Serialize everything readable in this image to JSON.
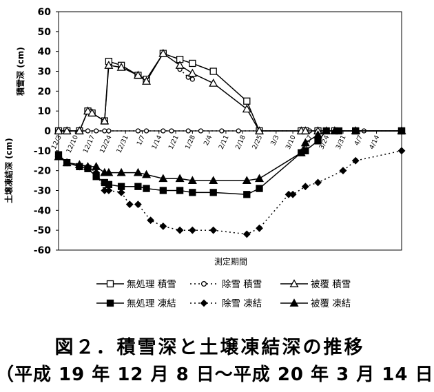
{
  "chart_data": {
    "type": "line",
    "x_ticks": [
      "12/3",
      "12/10",
      "12/17",
      "12/24",
      "12/31",
      "1/7",
      "1/14",
      "1/21",
      "1/28",
      "2/4",
      "2/11",
      "2/18",
      "2/25",
      "3/3",
      "3/10",
      "3/17",
      "3/24",
      "3/31",
      "4/7",
      "4/14"
    ],
    "y_ticks": [
      -60,
      -50,
      -40,
      -30,
      -20,
      -10,
      0,
      10,
      20,
      30,
      40,
      50,
      60
    ],
    "ylim": [
      -60,
      60
    ],
    "y_label_top": "積雪深 (cm)",
    "y_label_bottom": "土壌凍結深 (cm)",
    "xlabel": "測定期間",
    "grid": false,
    "legend_position": "bottom",
    "series": [
      {
        "name": "無処理 積雪",
        "color": "#000000",
        "marker": "square-open",
        "dash": "solid",
        "points": [
          [
            0,
            0
          ],
          [
            2,
            0
          ],
          [
            5,
            0
          ],
          [
            7,
            10
          ],
          [
            8,
            9
          ],
          [
            11,
            5
          ],
          [
            12,
            35
          ],
          [
            15,
            33
          ],
          [
            19,
            28
          ],
          [
            21,
            26
          ],
          [
            25,
            39
          ],
          [
            29,
            36
          ],
          [
            32,
            34
          ],
          [
            37,
            30
          ],
          [
            45,
            15
          ],
          [
            48,
            0
          ],
          [
            58,
            0
          ],
          [
            59,
            0
          ],
          [
            62,
            0
          ],
          [
            66,
            0
          ],
          [
            71,
            0
          ],
          [
            82,
            0
          ]
        ]
      },
      {
        "name": "除雪 積雪",
        "color": "#000000",
        "marker": "circle-open",
        "dash": "dotted",
        "points": [
          [
            0,
            0
          ],
          [
            2,
            0
          ],
          [
            5,
            0
          ],
          [
            7,
            0
          ],
          [
            9,
            0
          ],
          [
            11,
            0
          ],
          [
            12,
            0
          ],
          [
            19,
            0
          ],
          [
            21,
            0
          ],
          [
            25,
            0
          ],
          [
            27,
            0
          ],
          [
            31,
            0
          ],
          [
            34,
            0
          ],
          [
            39,
            0
          ],
          [
            43,
            0
          ],
          [
            48,
            0
          ],
          [
            59,
            0
          ],
          [
            60,
            0
          ],
          [
            64,
            0
          ],
          [
            67,
            0
          ],
          [
            73,
            0
          ],
          [
            82,
            0
          ]
        ],
        "extra_segment": [
          [
            29,
            31
          ],
          [
            31,
            27
          ],
          [
            32,
            26
          ]
        ]
      },
      {
        "name": "被覆 積雪",
        "color": "#000000",
        "marker": "triangle-open",
        "dash": "solid",
        "points": [
          [
            0,
            0
          ],
          [
            2,
            0
          ],
          [
            5,
            0
          ],
          [
            7,
            10
          ],
          [
            8,
            9
          ],
          [
            11,
            5
          ],
          [
            12,
            33
          ],
          [
            15,
            32
          ],
          [
            19,
            28
          ],
          [
            21,
            25
          ],
          [
            25,
            39
          ],
          [
            29,
            33
          ],
          [
            32,
            29
          ],
          [
            37,
            24
          ],
          [
            45,
            11
          ],
          [
            48,
            0
          ],
          [
            58,
            0
          ],
          [
            59,
            0
          ],
          [
            62,
            0
          ],
          [
            66,
            0
          ],
          [
            71,
            0
          ],
          [
            82,
            0
          ]
        ]
      },
      {
        "name": "無処理 凍結",
        "color": "#000000",
        "marker": "square-filled",
        "dash": "solid",
        "points": [
          [
            0,
            -12
          ],
          [
            2,
            -16
          ],
          [
            5,
            -18
          ],
          [
            7,
            -19
          ],
          [
            9,
            -23
          ],
          [
            11,
            -26
          ],
          [
            12,
            -27
          ],
          [
            15,
            -28
          ],
          [
            19,
            -28
          ],
          [
            21,
            -29
          ],
          [
            25,
            -30
          ],
          [
            29,
            -30
          ],
          [
            32,
            -31
          ],
          [
            37,
            -31
          ],
          [
            45,
            -32
          ],
          [
            48,
            -29
          ],
          [
            58,
            -11
          ],
          [
            59,
            -10
          ],
          [
            62,
            -5
          ],
          [
            64,
            0
          ],
          [
            67,
            0
          ],
          [
            71,
            0
          ],
          [
            82,
            0
          ]
        ]
      },
      {
        "name": "除雪 凍結",
        "color": "#000000",
        "marker": "diamond-filled",
        "dash": "dotted",
        "points": [
          [
            0,
            -13
          ],
          [
            2,
            -16
          ],
          [
            5,
            -18
          ],
          [
            7,
            -18
          ],
          [
            9,
            -21
          ],
          [
            11,
            -30
          ],
          [
            12,
            -30
          ],
          [
            15,
            -31
          ],
          [
            17,
            -37
          ],
          [
            19,
            -37
          ],
          [
            22,
            -45
          ],
          [
            25,
            -48
          ],
          [
            29,
            -50
          ],
          [
            32,
            -50
          ],
          [
            37,
            -50
          ],
          [
            45,
            -52
          ],
          [
            48,
            -49
          ],
          [
            55,
            -32
          ],
          [
            56,
            -32
          ],
          [
            59,
            -28
          ],
          [
            62,
            -26
          ],
          [
            68,
            -20
          ],
          [
            71,
            -15
          ],
          [
            82,
            -10
          ]
        ]
      },
      {
        "name": "被覆 凍結",
        "color": "#000000",
        "marker": "triangle-filled",
        "dash": "solid",
        "points": [
          [
            0,
            -13
          ],
          [
            2,
            -16
          ],
          [
            5,
            -17
          ],
          [
            7,
            -18
          ],
          [
            9,
            -18
          ],
          [
            11,
            -21
          ],
          [
            12,
            -21
          ],
          [
            15,
            -21
          ],
          [
            19,
            -21
          ],
          [
            21,
            -22
          ],
          [
            25,
            -24
          ],
          [
            29,
            -24
          ],
          [
            32,
            -25
          ],
          [
            37,
            -25
          ],
          [
            45,
            -25
          ],
          [
            48,
            -24
          ],
          [
            58,
            -11
          ],
          [
            59,
            -6
          ],
          [
            62,
            -2
          ],
          [
            64,
            0
          ],
          [
            66,
            0
          ],
          [
            71,
            0
          ],
          [
            82,
            0
          ]
        ]
      }
    ]
  },
  "caption": {
    "line1": "図２．積雪深と土壌凍結深の推移",
    "line2": "（平成 19 年 12 月 8 日～平成 20 年 3 月 14 日"
  }
}
